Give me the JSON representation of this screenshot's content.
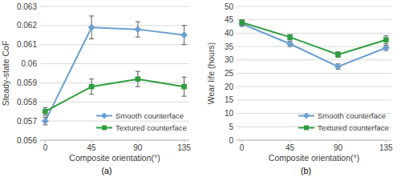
{
  "chart_data": [
    {
      "type": "line",
      "caption": "(a)",
      "x_label": "Composite orientation(°)",
      "y_label": "Steady-state CoF",
      "x": [
        0,
        45,
        90,
        135
      ],
      "xlim": [
        -5,
        140
      ],
      "xticks": [
        0,
        45,
        90,
        135
      ],
      "ylim": [
        0.056,
        0.063
      ],
      "yticks": [
        0.056,
        0.057,
        0.058,
        0.059,
        0.06,
        0.061,
        0.062,
        0.063
      ],
      "grid": true,
      "legend": "lower-right",
      "series": [
        {
          "name": "Smooth counterface",
          "color": "#6b9fcf",
          "marker": "diamond",
          "values": [
            0.057,
            0.0619,
            0.0618,
            0.0615
          ],
          "errors": [
            0.0002,
            0.0006,
            0.0004,
            0.0005
          ]
        },
        {
          "name": "Textured counterface",
          "color": "#2e9e3e",
          "marker": "square",
          "values": [
            0.0575,
            0.0588,
            0.0592,
            0.0588
          ],
          "errors": [
            0.0002,
            0.0004,
            0.0004,
            0.0005
          ]
        }
      ]
    },
    {
      "type": "line",
      "caption": "(b)",
      "x_label": "Composite orientation(°)",
      "y_label": "Wear life (hours)",
      "x": [
        0,
        45,
        90,
        135
      ],
      "xlim": [
        -5,
        140
      ],
      "xticks": [
        0,
        45,
        90,
        135
      ],
      "ylim": [
        0,
        50
      ],
      "yticks": [
        0,
        5,
        10,
        15,
        20,
        25,
        30,
        35,
        40,
        45,
        50
      ],
      "grid": true,
      "legend": "lower-right",
      "series": [
        {
          "name": "Smooth counterface",
          "color": "#6b9fcf",
          "marker": "diamond",
          "values": [
            43.5,
            36,
            27.5,
            34.5
          ],
          "errors": [
            1,
            1,
            1,
            1
          ]
        },
        {
          "name": "Textured counterface",
          "color": "#2e9e3e",
          "marker": "square",
          "values": [
            44,
            38.5,
            32,
            37.5
          ],
          "errors": [
            1,
            1,
            1,
            1.5
          ]
        }
      ]
    }
  ]
}
